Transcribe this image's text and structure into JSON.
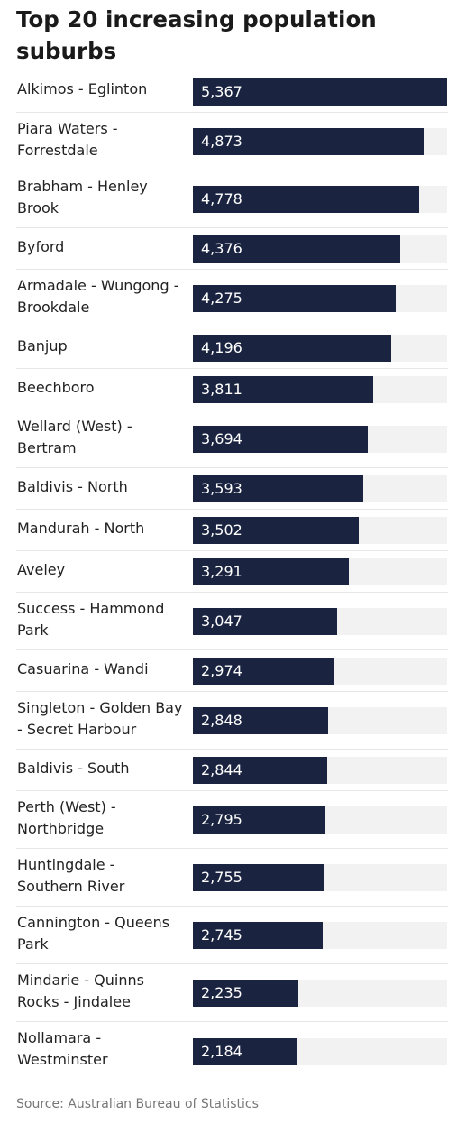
{
  "chart_data": {
    "type": "bar",
    "orientation": "horizontal",
    "title": "Top 20 increasing population suburbs",
    "categories": [
      "Alkimos - Eglinton",
      "Piara Waters - Forrestdale",
      "Brabham - Henley Brook",
      "Byford",
      "Armadale - Wungong - Brookdale",
      "Banjup",
      "Beechboro",
      "Wellard (West) - Bertram",
      "Baldivis - North",
      "Mandurah - North",
      "Aveley",
      "Success - Hammond Park",
      "Casuarina - Wandi",
      "Singleton - Golden Bay - Secret Harbour",
      "Baldivis - South",
      "Perth (West) - Northbridge",
      "Huntingdale - Southern River",
      "Cannington - Queens Park",
      "Mindarie - Quinns Rocks - Jindalee",
      "Nollamara - Westminster"
    ],
    "values": [
      5367,
      4873,
      4778,
      4376,
      4275,
      4196,
      3811,
      3694,
      3593,
      3502,
      3291,
      3047,
      2974,
      2848,
      2844,
      2795,
      2755,
      2745,
      2235,
      2184
    ],
    "value_labels": [
      "5,367",
      "4,873",
      "4,778",
      "4,376",
      "4,275",
      "4,196",
      "3,811",
      "3,694",
      "3,593",
      "3,502",
      "3,291",
      "3,047",
      "2,974",
      "2,848",
      "2,844",
      "2,795",
      "2,755",
      "2,745",
      "2,235",
      "2,184"
    ],
    "xlim": [
      0,
      5367
    ],
    "grid": false,
    "legend": "none",
    "colors": {
      "bar": "#1a2340",
      "track": "#f2f2f2",
      "value_text": "#ffffff"
    }
  },
  "source": "Source: Australian Bureau of Statistics"
}
